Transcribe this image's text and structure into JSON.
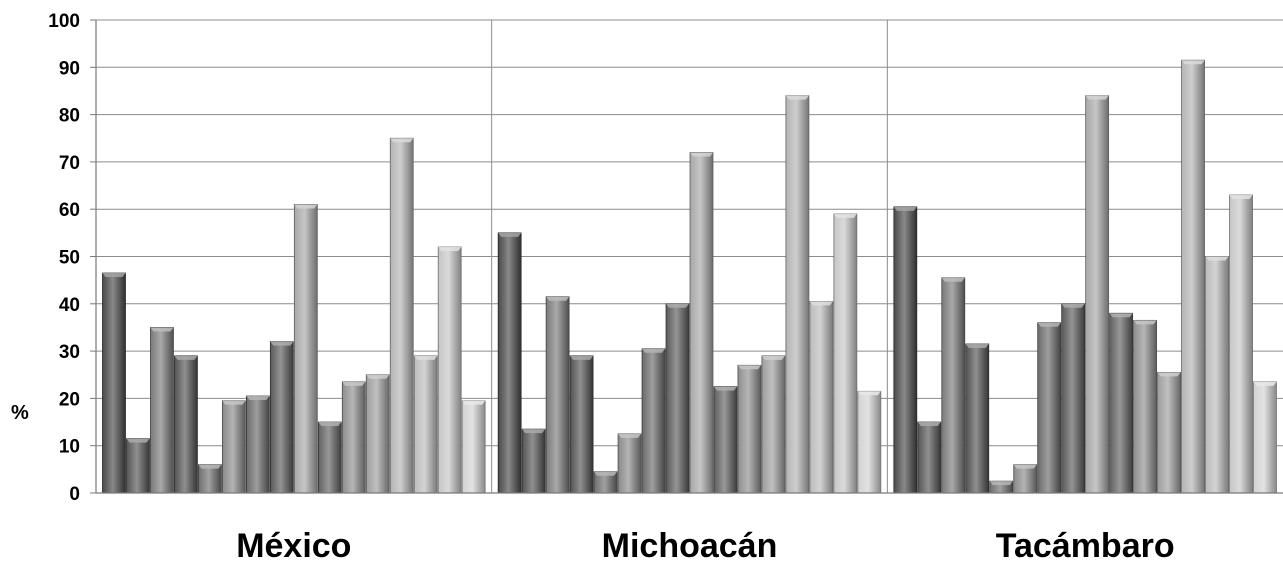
{
  "chart_data": {
    "type": "bar",
    "title": "",
    "xlabel": "",
    "ylabel": "%",
    "ylim": [
      0,
      100
    ],
    "yticks": [
      0,
      10,
      20,
      30,
      40,
      50,
      60,
      70,
      80,
      90,
      100
    ],
    "grid": true,
    "legend": "none",
    "categories": [
      "México",
      "Michoacán",
      "Tacámbaro"
    ],
    "series": [
      {
        "values": [
          46.5,
          55.0,
          60.5
        ],
        "color": "#4a4a4a"
      },
      {
        "values": [
          11.5,
          13.5,
          15.0
        ],
        "color": "#545454"
      },
      {
        "values": [
          35.0,
          41.5,
          45.5
        ],
        "color": "#7a7a7a"
      },
      {
        "values": [
          29.0,
          29.0,
          31.5
        ],
        "color": "#525252"
      },
      {
        "values": [
          6.0,
          4.5,
          2.5
        ],
        "color": "#6e6e6e"
      },
      {
        "values": [
          19.5,
          12.5,
          6.0
        ],
        "color": "#8a8a8a"
      },
      {
        "values": [
          20.5,
          30.5,
          36.0
        ],
        "color": "#6a6a6a"
      },
      {
        "values": [
          32.0,
          40.0,
          40.0
        ],
        "color": "#5a5a5a"
      },
      {
        "values": [
          61.0,
          72.0,
          84.0
        ],
        "color": "#a8a8a8"
      },
      {
        "values": [
          15.0,
          22.5,
          38.0
        ],
        "color": "#606060"
      },
      {
        "values": [
          23.5,
          27.0,
          36.5
        ],
        "color": "#8e8e8e"
      },
      {
        "values": [
          25.0,
          29.0,
          25.5
        ],
        "color": "#9e9e9e"
      },
      {
        "values": [
          75.0,
          84.0,
          91.5
        ],
        "color": "#b4b4b4"
      },
      {
        "values": [
          29.0,
          40.5,
          50.0
        ],
        "color": "#bcbcbc"
      },
      {
        "values": [
          52.0,
          59.0,
          63.0
        ],
        "color": "#c6c6c6"
      },
      {
        "values": [
          19.5,
          21.5,
          23.5
        ],
        "color": "#d2d2d2"
      }
    ]
  }
}
